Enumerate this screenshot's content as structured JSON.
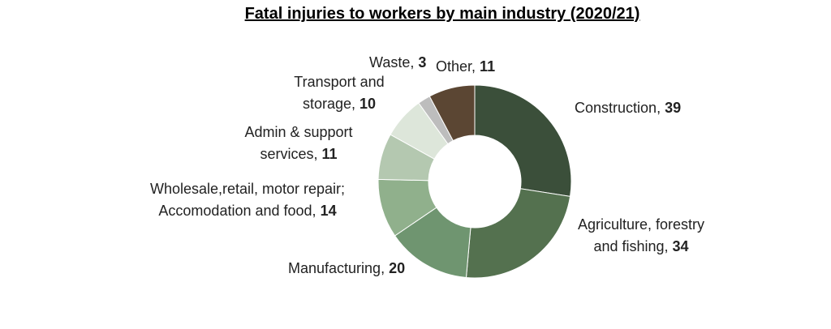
{
  "chart_data": {
    "type": "donut",
    "title": "Fatal injuries to workers by main industry (2020/21)",
    "categories": [
      "Construction",
      "Agriculture, forestry and fishing",
      "Manufacturing",
      "Wholesale,retail, motor repair; Accomodation and food",
      "Admin & support services",
      "Transport and storage",
      "Waste",
      "Other"
    ],
    "values": [
      39,
      34,
      20,
      14,
      11,
      10,
      3,
      11
    ],
    "colors": [
      "#3b4f3a",
      "#54714f",
      "#6f9570",
      "#90b08c",
      "#b4c8b0",
      "#dde6da",
      "#bdbdbd",
      "#5b4633"
    ]
  }
}
